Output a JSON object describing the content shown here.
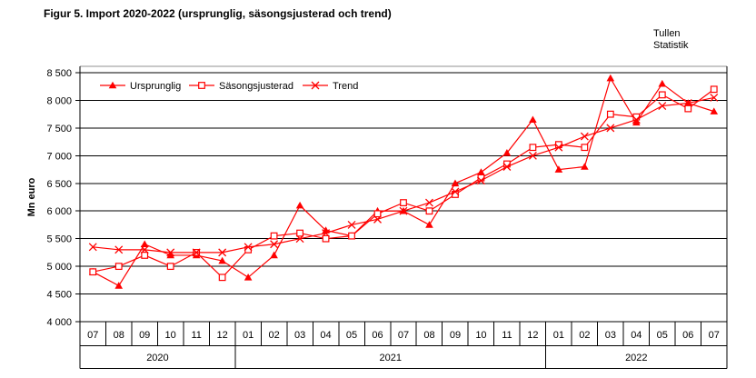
{
  "title": "Figur 5. Import 2020-2022 (ursprunglig, säsongsjusterad och trend)",
  "watermark": {
    "line1": "Tullen",
    "line2": "Statistik"
  },
  "chart_data": {
    "type": "line",
    "title": "Figur 5. Import 2020-2022 (ursprunglig, säsongsjusterad och trend)",
    "xlabel": "",
    "ylabel": "Mn euro",
    "ylim": [
      4000,
      8500
    ],
    "ytick_step": 500,
    "ytick_labels": [
      "8 500",
      "8 000",
      "7 500",
      "7 000",
      "6 500",
      "6 000",
      "5 500",
      "5 000",
      "4 500",
      "4 000"
    ],
    "grid": "horizontal-only",
    "legend_position": "top-left-inside",
    "series_color": "#ff0000",
    "x_months": [
      "07",
      "08",
      "09",
      "10",
      "11",
      "12",
      "01",
      "02",
      "03",
      "04",
      "05",
      "06",
      "07",
      "08",
      "09",
      "10",
      "11",
      "12",
      "01",
      "02",
      "03",
      "04",
      "05",
      "06",
      "07"
    ],
    "x_years": [
      {
        "label": "2020",
        "span": 6
      },
      {
        "label": "2021",
        "span": 12
      },
      {
        "label": "2022",
        "span": 7
      }
    ],
    "series": [
      {
        "name": "Ursprunglig",
        "marker": "triangle",
        "values": [
          4900,
          4650,
          5400,
          5200,
          5200,
          5100,
          4800,
          5200,
          6100,
          5650,
          5550,
          6000,
          6000,
          5750,
          6500,
          6700,
          7050,
          7650,
          6750,
          6800,
          8400,
          7600,
          8300,
          7950,
          7800
        ]
      },
      {
        "name": "Säsongsjusterad",
        "marker": "square",
        "values": [
          4900,
          5000,
          5200,
          5000,
          5250,
          4800,
          5300,
          5550,
          5600,
          5500,
          5550,
          5950,
          6150,
          6000,
          6300,
          6600,
          6850,
          7150,
          7200,
          7150,
          7750,
          7700,
          8100,
          7850,
          8200
        ]
      },
      {
        "name": "Trend",
        "marker": "x",
        "values": [
          5350,
          5300,
          5300,
          5250,
          5250,
          5250,
          5350,
          5400,
          5500,
          5600,
          5750,
          5850,
          6000,
          6150,
          6350,
          6550,
          6800,
          7000,
          7150,
          7350,
          7500,
          7650,
          7900,
          7950,
          8050
        ]
      }
    ]
  }
}
